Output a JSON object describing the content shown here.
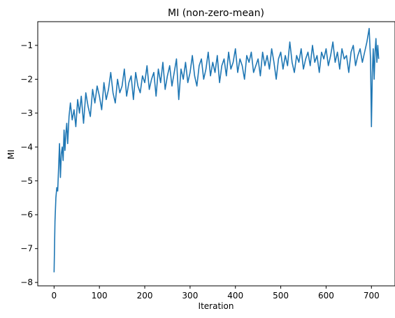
{
  "chart_data": {
    "type": "line",
    "title": "MI (non-zero-mean)",
    "xlabel": "Iteration",
    "ylabel": "MI",
    "xlim": [
      -36,
      752
    ],
    "ylim": [
      -8.1,
      -0.3
    ],
    "x_ticks": [
      0,
      100,
      200,
      300,
      400,
      500,
      600,
      700
    ],
    "y_ticks": [
      -8,
      -7,
      -6,
      -5,
      -4,
      -3,
      -2,
      -1
    ],
    "grid": false,
    "legend": "none",
    "color": "#1f77b4",
    "series": [
      {
        "x": [
          0,
          2,
          4,
          6,
          8,
          10,
          12,
          14,
          16,
          18,
          20,
          22,
          24,
          26,
          28,
          30,
          33,
          36,
          40,
          44,
          48,
          52,
          56,
          60,
          65,
          70,
          75,
          80,
          85,
          90,
          95,
          100,
          105,
          110,
          115,
          120,
          125,
          130,
          135,
          140,
          145,
          150,
          155,
          160,
          165,
          170,
          175,
          180,
          185,
          190,
          195,
          200,
          205,
          210,
          215,
          220,
          225,
          230,
          235,
          240,
          245,
          250,
          255,
          260,
          265,
          270,
          275,
          280,
          285,
          290,
          295,
          300,
          305,
          310,
          315,
          320,
          325,
          330,
          335,
          340,
          345,
          350,
          355,
          360,
          365,
          370,
          375,
          380,
          385,
          390,
          395,
          400,
          405,
          410,
          415,
          420,
          425,
          430,
          435,
          440,
          445,
          450,
          455,
          460,
          465,
          470,
          475,
          480,
          485,
          490,
          495,
          500,
          505,
          510,
          515,
          520,
          525,
          530,
          535,
          540,
          545,
          550,
          555,
          560,
          565,
          570,
          575,
          580,
          585,
          590,
          595,
          600,
          605,
          610,
          615,
          620,
          625,
          630,
          635,
          640,
          645,
          650,
          655,
          660,
          665,
          670,
          675,
          680,
          685,
          690,
          695,
          698,
          700,
          702,
          704,
          706,
          708,
          710,
          712,
          714,
          716
        ],
        "y": [
          -7.7,
          -6.2,
          -5.5,
          -5.2,
          -5.3,
          -4.6,
          -3.9,
          -4.9,
          -4.2,
          -4.0,
          -4.4,
          -3.5,
          -4.1,
          -3.6,
          -3.3,
          -3.9,
          -3.1,
          -2.7,
          -3.2,
          -2.9,
          -3.4,
          -2.6,
          -3.0,
          -2.5,
          -3.3,
          -2.4,
          -2.8,
          -3.1,
          -2.3,
          -2.7,
          -2.2,
          -2.5,
          -2.9,
          -2.1,
          -2.6,
          -2.3,
          -1.8,
          -2.4,
          -2.7,
          -2.0,
          -2.4,
          -2.2,
          -1.7,
          -2.5,
          -2.1,
          -1.9,
          -2.6,
          -1.8,
          -2.2,
          -2.4,
          -1.9,
          -2.1,
          -1.6,
          -2.3,
          -2.0,
          -1.8,
          -2.5,
          -1.7,
          -2.1,
          -1.5,
          -2.3,
          -1.9,
          -1.6,
          -2.2,
          -1.8,
          -1.4,
          -2.6,
          -1.7,
          -2.0,
          -1.5,
          -2.1,
          -1.8,
          -1.3,
          -1.9,
          -2.2,
          -1.6,
          -1.4,
          -2.0,
          -1.7,
          -1.2,
          -1.9,
          -1.5,
          -1.8,
          -1.3,
          -2.1,
          -1.6,
          -1.4,
          -1.9,
          -1.2,
          -1.7,
          -1.5,
          -1.1,
          -1.8,
          -1.4,
          -1.6,
          -2.0,
          -1.3,
          -1.5,
          -1.2,
          -1.8,
          -1.6,
          -1.4,
          -1.9,
          -1.2,
          -1.6,
          -1.3,
          -1.7,
          -1.1,
          -1.5,
          -2.0,
          -1.4,
          -1.2,
          -1.7,
          -1.3,
          -1.6,
          -0.9,
          -1.5,
          -1.8,
          -1.3,
          -1.5,
          -1.1,
          -1.7,
          -1.4,
          -1.2,
          -1.6,
          -1.0,
          -1.5,
          -1.3,
          -1.8,
          -1.2,
          -1.4,
          -1.1,
          -1.6,
          -1.3,
          -0.9,
          -1.5,
          -1.2,
          -1.7,
          -1.1,
          -1.4,
          -1.3,
          -1.8,
          -1.2,
          -1.0,
          -1.6,
          -1.3,
          -1.1,
          -1.5,
          -1.2,
          -0.9,
          -0.5,
          -1.4,
          -3.4,
          -1.8,
          -1.1,
          -2.0,
          -1.2,
          -0.8,
          -1.5,
          -1.0,
          -1.4
        ]
      }
    ]
  }
}
